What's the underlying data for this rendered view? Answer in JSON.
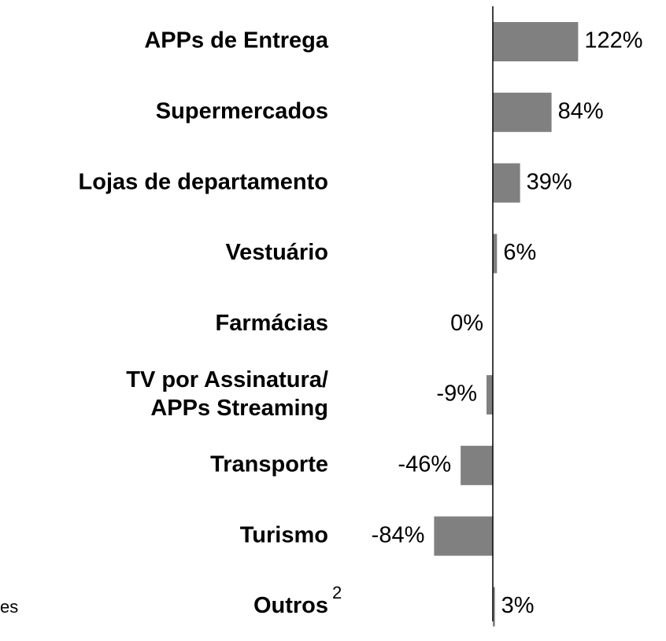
{
  "chart_data": {
    "type": "bar",
    "orientation": "horizontal",
    "categories": [
      "APPs de Entrega",
      "Supermercados",
      "Lojas de departamento",
      "Vestuário",
      "Farmácias",
      "TV por Assinatura/\nAPPs Streaming",
      "Transporte",
      "Turismo",
      "Outros"
    ],
    "category_marks": [
      null,
      null,
      null,
      null,
      null,
      null,
      null,
      null,
      "2"
    ],
    "values": [
      122,
      84,
      39,
      6,
      0,
      -9,
      -46,
      -84,
      3
    ],
    "value_labels": [
      "122%",
      "84%",
      "39%",
      "6%",
      "0%",
      "-9%",
      "-46%",
      "-84%",
      "3%"
    ],
    "color": "#808080",
    "side_text": "es"
  }
}
